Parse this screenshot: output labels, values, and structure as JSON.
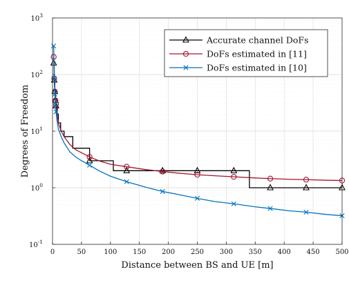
{
  "chart_data": {
    "type": "line",
    "xlabel": "Distance between BS and UE [m]",
    "ylabel": "Degrees of Freedom",
    "xlim": [
      0,
      500
    ],
    "ylim": [
      0.1,
      1000
    ],
    "yscale": "log",
    "grid": true,
    "legend_position": "top-right",
    "x_ticks": [
      0,
      50,
      100,
      150,
      200,
      250,
      300,
      350,
      400,
      450,
      500
    ],
    "y_ticks": [
      {
        "value": 0.1,
        "base": "10",
        "exp": "-1"
      },
      {
        "value": 1,
        "base": "10",
        "exp": "0"
      },
      {
        "value": 10,
        "base": "10",
        "exp": "1"
      },
      {
        "value": 100,
        "base": "10",
        "exp": "2"
      },
      {
        "value": 1000,
        "base": "10",
        "exp": "3"
      }
    ],
    "series": [
      {
        "name": "Accurate channel DoFs",
        "color": "#000000",
        "marker": "triangle",
        "step": true,
        "x": [
          2,
          3,
          4,
          5,
          6,
          8,
          10,
          14,
          20,
          35,
          64,
          105,
          128,
          190,
          250,
          313,
          340,
          376,
          438,
          500
        ],
        "y": [
          160,
          80,
          50,
          35,
          28,
          20,
          14,
          10,
          8,
          5,
          3,
          2,
          2,
          2,
          2,
          2,
          1,
          1,
          1,
          1
        ],
        "markers_x": [
          2,
          3,
          4,
          5,
          6,
          64,
          128,
          190,
          250,
          313,
          376,
          438,
          500
        ],
        "markers_y": [
          160,
          80,
          50,
          35,
          28,
          3,
          2,
          2,
          2,
          2,
          1,
          1,
          1
        ]
      },
      {
        "name": "DoFs estimated in [11]",
        "color": "#a2142f",
        "marker": "circle",
        "x": [
          2,
          3,
          4,
          5,
          6,
          8,
          10,
          15,
          20,
          30,
          40,
          64,
          80,
          100,
          128,
          160,
          190,
          220,
          250,
          280,
          313,
          350,
          376,
          410,
          438,
          470,
          500
        ],
        "y": [
          205,
          85,
          50,
          35,
          30,
          19,
          14,
          10,
          8,
          5.8,
          4.7,
          3.5,
          3.0,
          2.6,
          2.35,
          2.1,
          1.93,
          1.8,
          1.7,
          1.63,
          1.56,
          1.49,
          1.45,
          1.41,
          1.39,
          1.36,
          1.34
        ],
        "markers_x": [
          2,
          3,
          4,
          5,
          6,
          64,
          128,
          190,
          250,
          313,
          376,
          438,
          500
        ],
        "markers_y": [
          205,
          85,
          50,
          35,
          30,
          3.5,
          2.35,
          1.93,
          1.7,
          1.56,
          1.45,
          1.39,
          1.34
        ]
      },
      {
        "name": "DoFs estimated in [10]",
        "color": "#0072bd",
        "marker": "x",
        "x": [
          2,
          3,
          4,
          5,
          6,
          8,
          10,
          15,
          20,
          30,
          40,
          50,
          64,
          80,
          100,
          128,
          160,
          190,
          220,
          250,
          280,
          313,
          350,
          376,
          410,
          438,
          470,
          500
        ],
        "y": [
          320,
          85,
          45,
          30,
          22,
          15,
          11,
          8,
          6.2,
          4.3,
          3.5,
          3.0,
          2.5,
          2.0,
          1.6,
          1.28,
          1.03,
          0.86,
          0.75,
          0.65,
          0.57,
          0.52,
          0.46,
          0.43,
          0.39,
          0.37,
          0.34,
          0.32
        ],
        "markers_x": [
          2,
          3,
          4,
          5,
          6,
          64,
          128,
          190,
          250,
          313,
          376,
          438,
          500
        ],
        "markers_y": [
          320,
          85,
          45,
          30,
          22,
          2.5,
          1.28,
          0.86,
          0.65,
          0.52,
          0.43,
          0.37,
          0.32
        ]
      }
    ]
  }
}
